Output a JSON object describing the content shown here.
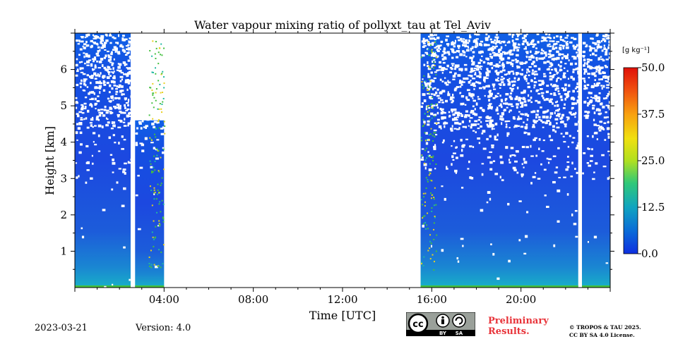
{
  "chart_data": {
    "type": "heatmap",
    "title": "Water vapour mixing ratio of pollyxt_tau at Tel_Aviv",
    "xlabel": "Time [UTC]",
    "ylabel": "Height [km]",
    "xlim_hours": [
      0,
      24
    ],
    "ylim_km": [
      0,
      7
    ],
    "x_ticks": [
      {
        "hour": 4,
        "label": "04:00"
      },
      {
        "hour": 8,
        "label": "08:00"
      },
      {
        "hour": 12,
        "label": "12:00"
      },
      {
        "hour": 16,
        "label": "16:00"
      },
      {
        "hour": 20,
        "label": "20:00"
      }
    ],
    "y_ticks": [
      {
        "km": 1,
        "label": "1"
      },
      {
        "km": 2,
        "label": "2"
      },
      {
        "km": 3,
        "label": "3"
      },
      {
        "km": 4,
        "label": "4"
      },
      {
        "km": 5,
        "label": "5"
      },
      {
        "km": 6,
        "label": "6"
      }
    ],
    "colorbar": {
      "unit": "[g kg⁻¹]",
      "range": [
        0.0,
        50.0
      ],
      "ticks": [
        "0.0",
        "12.5",
        "25.0",
        "37.5",
        "50.0"
      ],
      "colormap": "jet"
    },
    "data_segments": [
      {
        "start": "00:00",
        "end": "02:30"
      },
      {
        "start": "02:42",
        "end": "04:00"
      },
      {
        "start": "15:30",
        "end": "22:34"
      },
      {
        "start": "22:44",
        "end": "24:00"
      }
    ],
    "no_data_gap": {
      "start": "04:00",
      "end": "15:30"
    },
    "colors": {
      "low": "#1a4fd8",
      "surface": "#12a5c8",
      "ground": "#45c040",
      "edge": "#e8d020"
    }
  },
  "footer": {
    "date": "2023-03-21",
    "version": "Version: 4.0",
    "preliminary_line1": "Preliminary",
    "preliminary_line2": "Results.",
    "copyright_line1": "© TROPOS & TAU 2025.",
    "copyright_line2": "CC BY SA 4.0 License.",
    "cc_logo": {
      "by": "BY",
      "sa": "SA"
    }
  }
}
